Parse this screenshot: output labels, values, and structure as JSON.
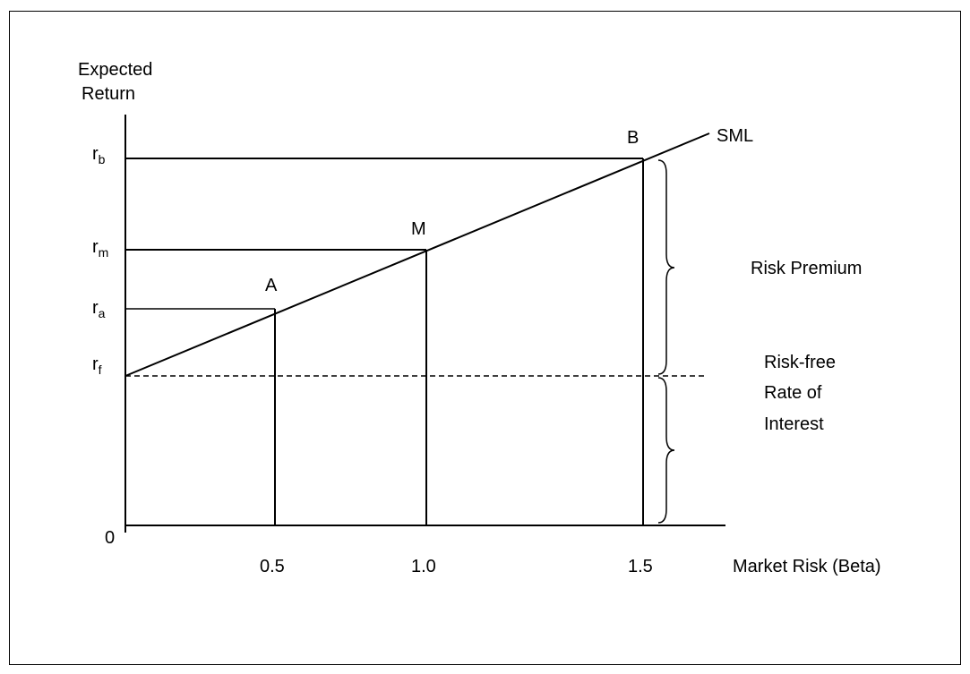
{
  "y_axis_label": [
    "Expected",
    "Return"
  ],
  "x_axis_label": "Market Risk (Beta)",
  "origin_label": "0",
  "line_label": "SML",
  "y_ticks": [
    {
      "base": "r",
      "sub": "b"
    },
    {
      "base": "r",
      "sub": "m"
    },
    {
      "base": "r",
      "sub": "a"
    },
    {
      "base": "r",
      "sub": "f"
    }
  ],
  "x_ticks": [
    "0.5",
    "1.0",
    "1.5"
  ],
  "points": [
    "A",
    "M",
    "B"
  ],
  "brace_labels": {
    "risk_premium": "Risk Premium",
    "risk_free": [
      "Risk-free",
      "Rate of",
      "Interest"
    ]
  },
  "colors": {
    "ink": "#000000",
    "background": "#ffffff"
  }
}
